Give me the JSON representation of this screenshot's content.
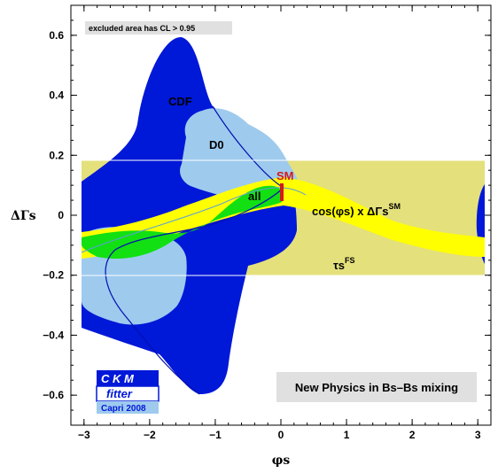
{
  "header_note": "excluded area has CL > 0.95",
  "chart_data": {
    "type": "contour",
    "title": "",
    "xlabel": "φs",
    "ylabel": "ΔΓs",
    "xlim": [
      -3.2,
      3.2
    ],
    "ylim": [
      -0.7,
      0.7
    ],
    "xticks": [
      -3,
      -2,
      -1,
      0,
      1,
      2,
      3
    ],
    "xtick_labels": [
      "−3",
      "−2",
      "−1",
      "0",
      "1",
      "2",
      "3"
    ],
    "yticks": [
      -0.6,
      -0.4,
      -0.2,
      0,
      0.2,
      0.4,
      0.6
    ],
    "ytick_labels": [
      "−0.6",
      "−0.4",
      "−0.2",
      "0",
      "0.2",
      "0.4",
      "0.6"
    ],
    "grid": false,
    "colors": {
      "cdf": "#0018d8",
      "d0": "#9ecaee",
      "cos_band": "#ffff00",
      "tau_band": "#e4e07c",
      "all": "#12e012",
      "sm_marker": "#d41a1a",
      "np_box": "#e0e0e0",
      "note_box": "#e0e0e0"
    },
    "regions": [
      {
        "name": "CDF",
        "label": "CDF"
      },
      {
        "name": "D0",
        "label": "D0"
      },
      {
        "name": "all",
        "label": "all"
      },
      {
        "name": "cos_band",
        "label": "cos(φs) x ΔΓs",
        "label_sup": "SM"
      },
      {
        "name": "tau_band",
        "label": "τs",
        "label_sup": "FS"
      }
    ],
    "sm_point": {
      "label": "SM",
      "x": 0.0,
      "y": 0.1
    },
    "tau_band_range": [
      -0.2,
      0.2
    ]
  },
  "np_box": {
    "text": "New Physics in Bs–Bs mixing"
  },
  "logo": {
    "line1": "C K M",
    "line2": "fitter",
    "line3": "Capri 2008"
  }
}
